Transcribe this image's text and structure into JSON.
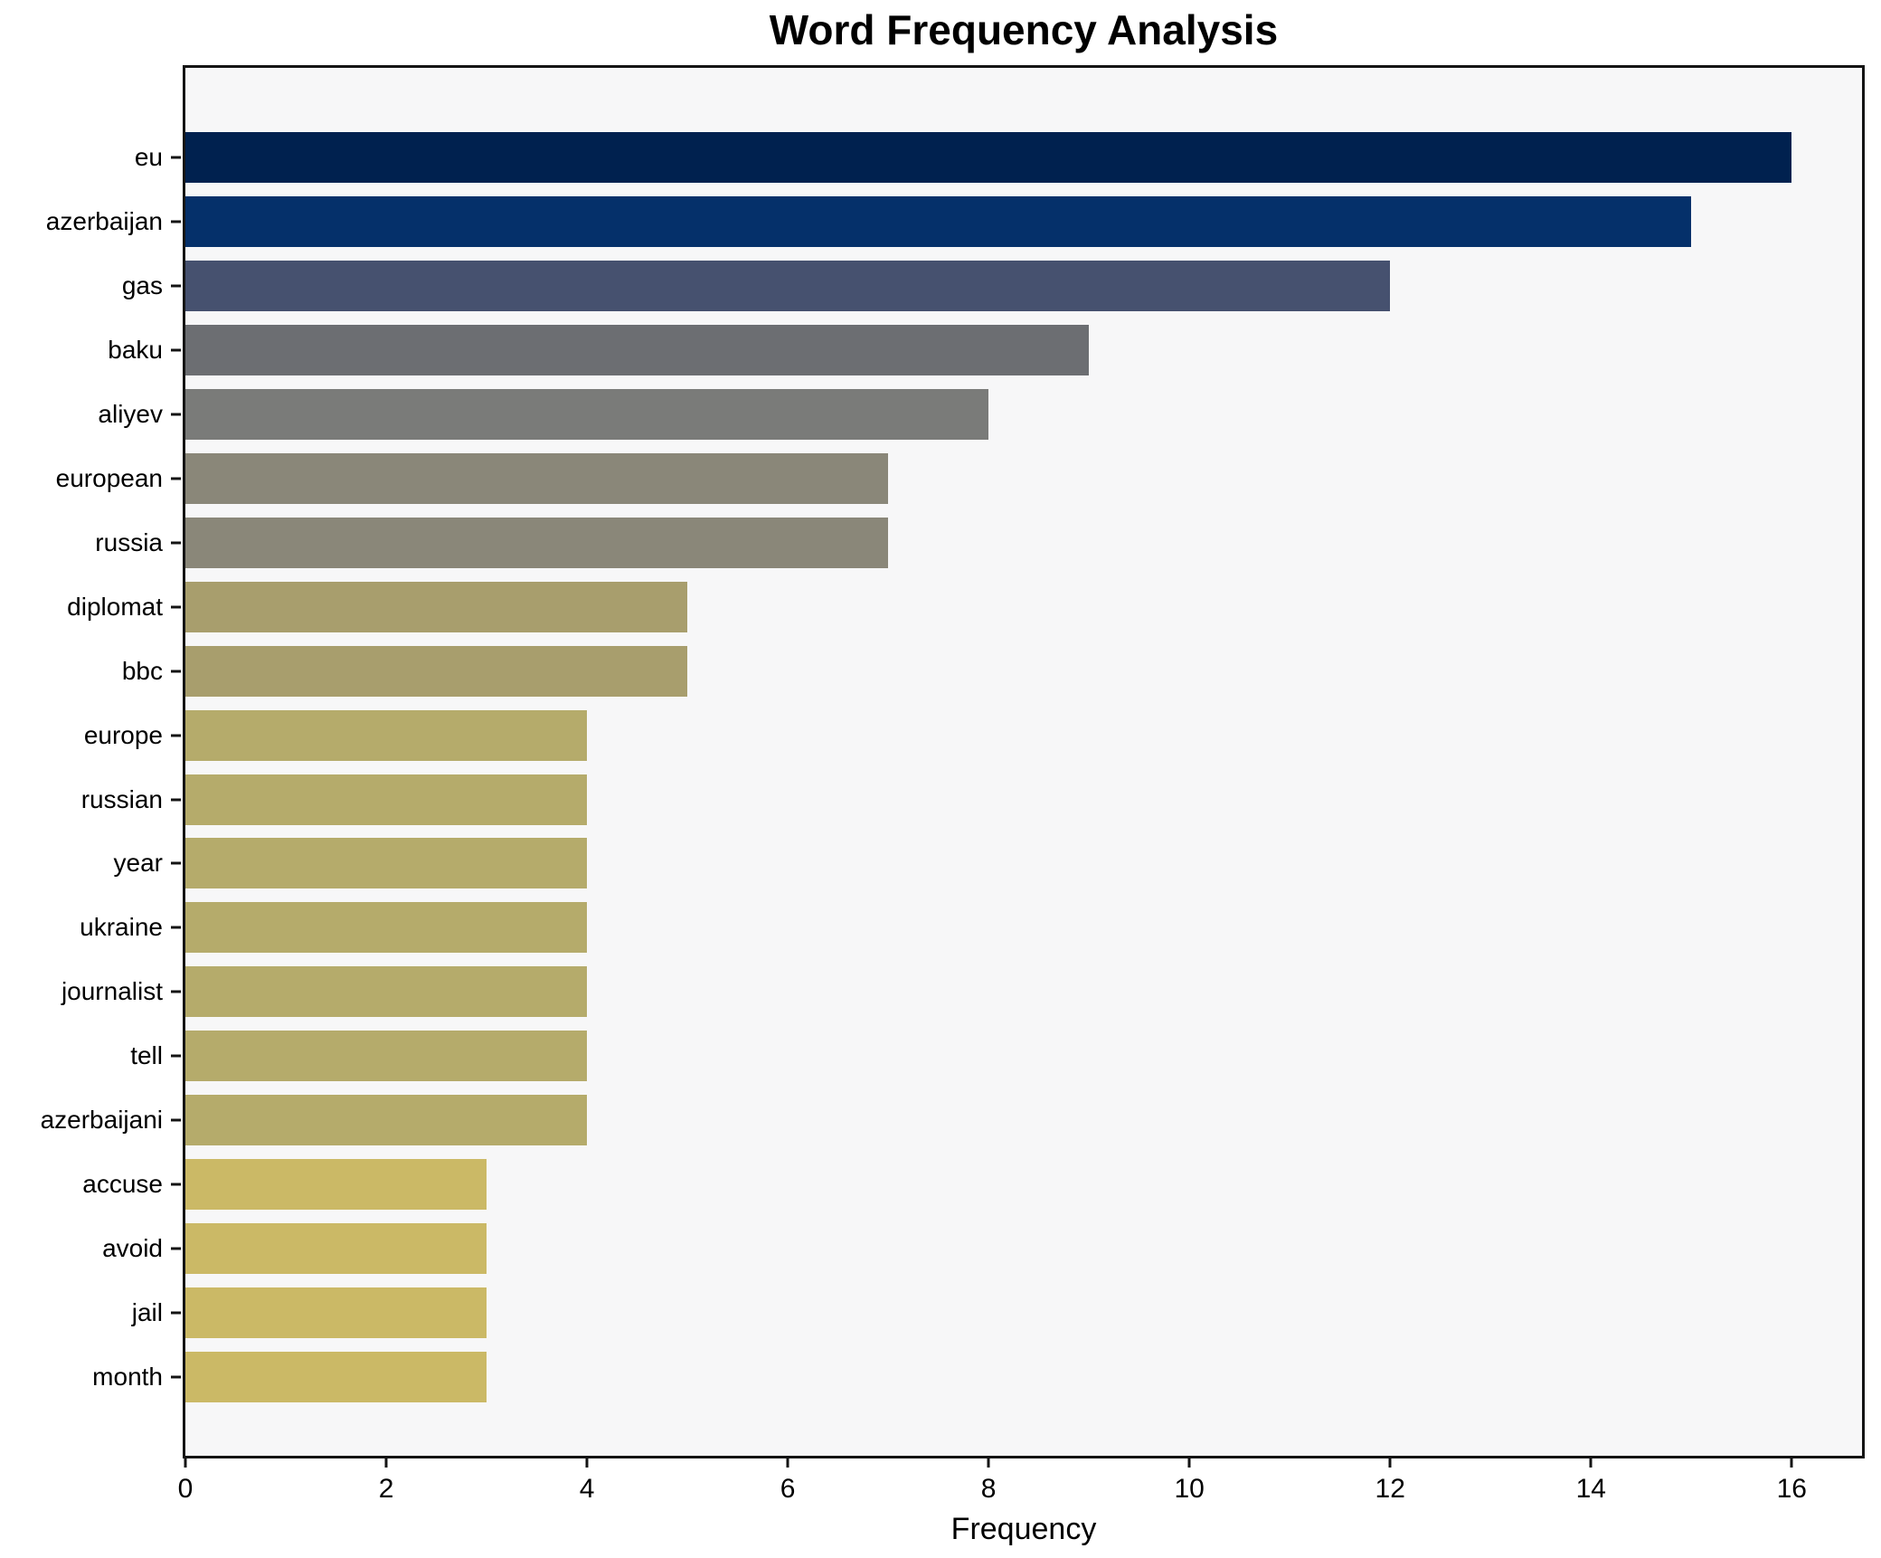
{
  "chart_data": {
    "type": "bar",
    "orientation": "horizontal",
    "title": "Word Frequency Analysis",
    "xlabel": "Frequency",
    "ylabel": "",
    "categories": [
      "eu",
      "azerbaijan",
      "gas",
      "baku",
      "aliyev",
      "european",
      "russia",
      "diplomat",
      "bbc",
      "europe",
      "russian",
      "year",
      "ukraine",
      "journalist",
      "tell",
      "azerbaijani",
      "accuse",
      "avoid",
      "jail",
      "month"
    ],
    "values": [
      16,
      15,
      12,
      9,
      8,
      7,
      7,
      5,
      5,
      4,
      4,
      4,
      4,
      4,
      4,
      4,
      3,
      3,
      3,
      3
    ],
    "bar_colors": [
      "#00214f",
      "#05306a",
      "#46516f",
      "#6c6e72",
      "#7a7b79",
      "#8a8779",
      "#8a8779",
      "#a89e6d",
      "#a89e6d",
      "#b5ab6b",
      "#b5ab6b",
      "#b5ab6b",
      "#b5ab6b",
      "#b5ab6b",
      "#b5ab6b",
      "#b5ab6b",
      "#cbb966",
      "#cbb966",
      "#cbb966",
      "#cbb966"
    ],
    "colormap": "cividis-reversed-by-value",
    "xlim": [
      0,
      16.7
    ],
    "xticks": [
      0,
      2,
      4,
      6,
      8,
      10,
      12,
      14,
      16
    ],
    "grid": false,
    "legend": false,
    "plot_background": "#f7f7f8",
    "figure_background": "#ffffff",
    "spine_color": "#141414",
    "text_color": "#000000"
  }
}
